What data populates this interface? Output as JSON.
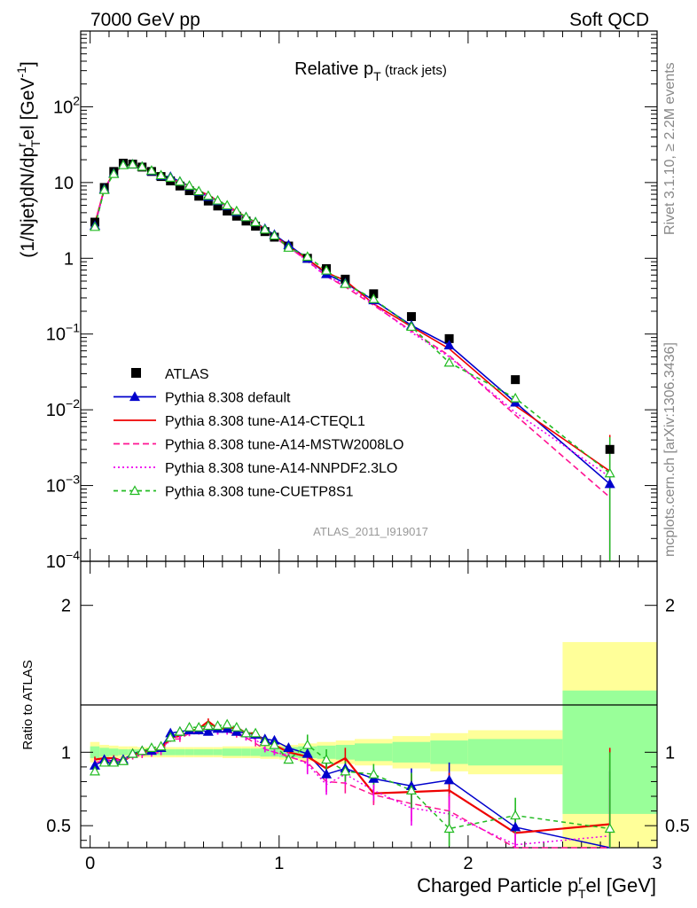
{
  "header": {
    "left": "7000 GeV pp",
    "right": "Soft QCD"
  },
  "side_labels": {
    "rivet": "Rivet 3.1.10, ≥ 2.2M events",
    "mcplots": "mcplots.cern.ch [arXiv:1306.3436]"
  },
  "analysis_id": "ATLAS_2011_I919017",
  "chart_data": [
    {
      "type": "scatter",
      "title": "Relative p_T (track jets)",
      "ylabel": "(1/Njet)dN/dp_T^rel [GeV^-1]",
      "xlabel": "Charged Particle p_T^rel [GeV]",
      "log_y": true,
      "xlim": [
        -0.05,
        3.0
      ],
      "ylim": [
        0.0001,
        1000
      ],
      "y_ticks": [
        "10^-4",
        "10^-3",
        "10^-2",
        "10^-1",
        "1",
        "10",
        "10^2"
      ],
      "legend_position": "lower-left",
      "x": [
        0.025,
        0.075,
        0.125,
        0.175,
        0.225,
        0.275,
        0.325,
        0.375,
        0.425,
        0.475,
        0.525,
        0.575,
        0.625,
        0.675,
        0.725,
        0.775,
        0.825,
        0.875,
        0.925,
        0.975,
        1.05,
        1.15,
        1.25,
        1.35,
        1.5,
        1.7,
        1.9,
        2.25,
        2.75
      ],
      "series": [
        {
          "name": "ATLAS",
          "color": "#000000",
          "style": "data",
          "values": [
            3.0,
            8.6,
            14.0,
            18.0,
            17.5,
            16.0,
            14.0,
            12.0,
            10.5,
            9.0,
            7.8,
            6.6,
            5.7,
            4.9,
            4.2,
            3.6,
            3.1,
            2.65,
            2.25,
            1.9,
            1.45,
            1.0,
            0.73,
            0.53,
            0.34,
            0.17,
            0.087,
            0.025,
            0.003
          ]
        },
        {
          "name": "Pythia 8.308 default",
          "color": "#0000cc",
          "style": "solid-triangle",
          "values": [
            2.7,
            8.2,
            13.2,
            17.1,
            17.4,
            16.2,
            14.2,
            12.3,
            11.9,
            10.3,
            9.0,
            7.6,
            6.5,
            5.7,
            4.9,
            4.1,
            3.5,
            3.0,
            2.45,
            2.05,
            1.5,
            0.99,
            0.62,
            0.47,
            0.28,
            0.13,
            0.071,
            0.0125,
            0.00105
          ]
        },
        {
          "name": "Pythia 8.308 tune-A14-CTEQL1",
          "color": "#ee0000",
          "style": "solid",
          "values": [
            2.9,
            8.3,
            13.4,
            17.0,
            17.2,
            16.0,
            14.1,
            12.2,
            11.5,
            10.0,
            8.9,
            7.7,
            6.9,
            5.7,
            4.9,
            4.2,
            3.5,
            3.0,
            2.4,
            2.0,
            1.45,
            0.97,
            0.65,
            0.51,
            0.25,
            0.125,
            0.064,
            0.0113,
            0.00155
          ]
        },
        {
          "name": "Pythia 8.308 tune-A14-MSTW2008LO",
          "color": "#ff1493",
          "style": "dashed",
          "values": [
            2.8,
            8.1,
            13.2,
            17.2,
            17.0,
            15.7,
            13.8,
            12.0,
            11.4,
            9.8,
            8.8,
            7.5,
            6.7,
            5.6,
            4.8,
            4.0,
            3.4,
            2.8,
            2.3,
            1.9,
            1.4,
            0.93,
            0.58,
            0.42,
            0.24,
            0.11,
            0.052,
            0.0085,
            0.0007
          ]
        },
        {
          "name": "Pythia 8.308 tune-A14-NNPDF2.3LO",
          "color": "#ee00ee",
          "style": "dotted",
          "values": [
            2.8,
            8.2,
            13.3,
            17.1,
            17.1,
            15.9,
            13.9,
            12.1,
            11.6,
            10.0,
            8.8,
            7.6,
            6.7,
            5.6,
            4.8,
            4.1,
            3.4,
            2.9,
            2.3,
            1.9,
            1.42,
            0.92,
            0.57,
            0.45,
            0.25,
            0.105,
            0.05,
            0.0092,
            0.0013
          ]
        },
        {
          "name": "Pythia 8.308 tune-CUETP8S1",
          "color": "#22bb22",
          "style": "dashed-open-triangle",
          "values": [
            2.6,
            8.0,
            13.0,
            17.0,
            17.4,
            16.2,
            14.4,
            12.5,
            11.6,
            10.3,
            9.1,
            7.7,
            6.7,
            5.8,
            5.0,
            4.2,
            3.5,
            3.0,
            2.4,
            2.0,
            1.38,
            1.05,
            0.69,
            0.46,
            0.29,
            0.125,
            0.042,
            0.0142,
            0.00145
          ]
        }
      ]
    },
    {
      "type": "line",
      "ylabel": "Ratio to ATLAS",
      "xlabel": "Charged Particle p_T^rel [GeV]",
      "xlim": [
        -0.05,
        3.0
      ],
      "ylim": [
        0.35,
        2.3
      ],
      "y_ticks": [
        0.5,
        1,
        2
      ],
      "x_ticks": [
        0,
        1,
        2,
        3
      ],
      "bin_edges": [
        0.0,
        0.05,
        0.1,
        0.15,
        0.2,
        0.25,
        0.3,
        0.35,
        0.4,
        0.45,
        0.5,
        0.55,
        0.6,
        0.65,
        0.7,
        0.75,
        0.8,
        0.85,
        0.9,
        0.95,
        1.0,
        1.1,
        1.2,
        1.3,
        1.4,
        1.6,
        1.8,
        2.0,
        2.5,
        3.0
      ],
      "band_stat_fraction": [
        0.04,
        0.03,
        0.025,
        0.02,
        0.02,
        0.02,
        0.02,
        0.02,
        0.02,
        0.02,
        0.02,
        0.02,
        0.02,
        0.02,
        0.025,
        0.025,
        0.025,
        0.025,
        0.03,
        0.03,
        0.035,
        0.04,
        0.045,
        0.05,
        0.06,
        0.07,
        0.08,
        0.09,
        0.42
      ],
      "band_total_fraction": [
        0.07,
        0.05,
        0.045,
        0.04,
        0.04,
        0.035,
        0.035,
        0.035,
        0.035,
        0.035,
        0.035,
        0.035,
        0.035,
        0.035,
        0.04,
        0.04,
        0.04,
        0.04,
        0.045,
        0.045,
        0.05,
        0.06,
        0.07,
        0.08,
        0.09,
        0.11,
        0.13,
        0.15,
        0.75
      ],
      "band_colors": {
        "stat": "#99ff99",
        "total": "#ffff99"
      },
      "x": [
        0.025,
        0.075,
        0.125,
        0.175,
        0.225,
        0.275,
        0.325,
        0.375,
        0.425,
        0.475,
        0.525,
        0.575,
        0.625,
        0.675,
        0.725,
        0.775,
        0.825,
        0.875,
        0.925,
        0.975,
        1.05,
        1.15,
        1.25,
        1.35,
        1.5,
        1.7,
        1.9,
        2.25,
        2.75
      ],
      "series": [
        {
          "name": "Pythia 8.308 default",
          "color": "#0000cc",
          "values": [
            0.91,
            0.95,
            0.94,
            0.95,
            0.99,
            1.01,
            1.01,
            1.03,
            1.13,
            1.14,
            1.15,
            1.15,
            1.14,
            1.16,
            1.16,
            1.14,
            1.13,
            1.12,
            1.09,
            1.08,
            1.03,
            0.99,
            0.85,
            0.89,
            0.82,
            0.77,
            0.81,
            0.49,
            0.35
          ]
        },
        {
          "name": "Pythia 8.308 tune-A14-CTEQL1",
          "color": "#ee0000",
          "values": [
            0.95,
            0.96,
            0.96,
            0.94,
            0.98,
            1.0,
            1.01,
            1.02,
            1.1,
            1.11,
            1.14,
            1.16,
            1.21,
            1.16,
            1.16,
            1.17,
            1.13,
            1.13,
            1.07,
            1.05,
            1.0,
            0.97,
            0.89,
            0.96,
            0.72,
            0.73,
            0.74,
            0.45,
            0.51
          ]
        },
        {
          "name": "Pythia 8.308 tune-A14-MSTW2008LO",
          "color": "#ff1493",
          "values": [
            0.93,
            0.94,
            0.94,
            0.95,
            0.97,
            0.98,
            0.99,
            1.0,
            1.09,
            1.09,
            1.13,
            1.14,
            1.18,
            1.14,
            1.14,
            1.12,
            1.1,
            1.06,
            1.02,
            1.0,
            0.97,
            0.93,
            0.8,
            0.79,
            0.71,
            0.65,
            0.6,
            0.34,
            0.23
          ]
        },
        {
          "name": "Pythia 8.308 tune-A14-NNPDF2.3LO",
          "color": "#ee00ee",
          "values": [
            0.93,
            0.95,
            0.95,
            0.95,
            0.98,
            0.99,
            0.99,
            1.01,
            1.1,
            1.11,
            1.13,
            1.15,
            1.18,
            1.14,
            1.14,
            1.14,
            1.1,
            1.09,
            1.02,
            1.0,
            0.98,
            0.92,
            0.78,
            0.85,
            0.74,
            0.62,
            0.58,
            0.37,
            0.43
          ]
        },
        {
          "name": "Pythia 8.308 tune-CUETP8S1",
          "color": "#22bb22",
          "values": [
            0.87,
            0.93,
            0.93,
            0.94,
            0.99,
            1.01,
            1.03,
            1.04,
            1.1,
            1.14,
            1.17,
            1.17,
            1.18,
            1.18,
            1.19,
            1.17,
            1.13,
            1.13,
            1.07,
            1.05,
            0.95,
            1.05,
            0.95,
            0.87,
            0.85,
            0.74,
            0.48,
            0.57,
            0.48
          ]
        }
      ]
    }
  ]
}
